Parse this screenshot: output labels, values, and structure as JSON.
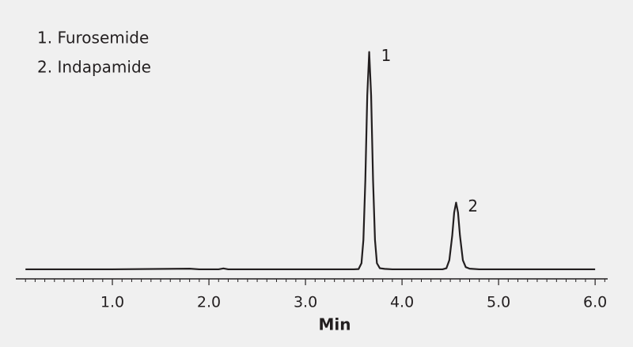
{
  "chart_data": {
    "type": "line",
    "x_label": "Min",
    "peak_names": [
      "1. Furosemide",
      "2. Indapamide"
    ],
    "peak_labels": [
      "1",
      "2"
    ],
    "x": [
      0.1,
      1.0,
      1.8,
      1.9,
      2.1,
      2.15,
      2.2,
      3.0,
      3.5,
      3.55,
      3.58,
      3.6,
      3.62,
      3.64,
      3.66,
      3.68,
      3.7,
      3.72,
      3.74,
      3.77,
      3.82,
      3.9,
      4.42,
      4.46,
      4.49,
      4.52,
      4.54,
      4.56,
      4.58,
      4.6,
      4.63,
      4.66,
      4.7,
      4.8,
      6.0
    ],
    "values": [
      0,
      0,
      0.3,
      0,
      0,
      0.4,
      0,
      0,
      0,
      0.1,
      2.8,
      13.5,
      41,
      80,
      100,
      80,
      41,
      13.5,
      2.8,
      0.5,
      0.2,
      0,
      0,
      0.5,
      4.2,
      15.5,
      26.1,
      30.7,
      26.1,
      15.5,
      4.2,
      1,
      0.3,
      0,
      0
    ],
    "color": "#231f20",
    "xlim": [
      0,
      6.13
    ],
    "ylim": [
      -4.4,
      113
    ],
    "xticks": [
      {
        "value": 1,
        "label": "1.0"
      },
      {
        "value": 2,
        "label": "2.0"
      },
      {
        "value": 3,
        "label": "3.0"
      },
      {
        "value": 4,
        "label": "4.0"
      },
      {
        "value": 5,
        "label": "5.0"
      },
      {
        "value": 6,
        "label": "6.0"
      }
    ],
    "xminorticks": [
      0.1,
      0.2,
      0.3,
      0.4,
      0.5,
      0.6,
      0.7,
      0.8,
      0.9,
      1.1,
      1.2,
      1.3,
      1.4,
      1.5,
      1.6,
      1.7,
      1.8,
      1.9,
      2.1,
      2.2,
      2.3,
      2.4,
      2.5,
      2.6,
      2.7,
      2.8,
      2.9,
      3.1,
      3.2,
      3.3,
      3.4,
      3.5,
      3.6,
      3.7,
      3.8,
      3.9,
      4.1,
      4.2,
      4.3,
      4.4,
      4.5,
      4.6,
      4.7,
      4.8,
      4.9,
      5.1,
      5.2,
      5.3,
      5.4,
      5.5,
      5.6,
      5.7,
      5.8,
      5.9,
      6.1
    ],
    "grid": false
  }
}
